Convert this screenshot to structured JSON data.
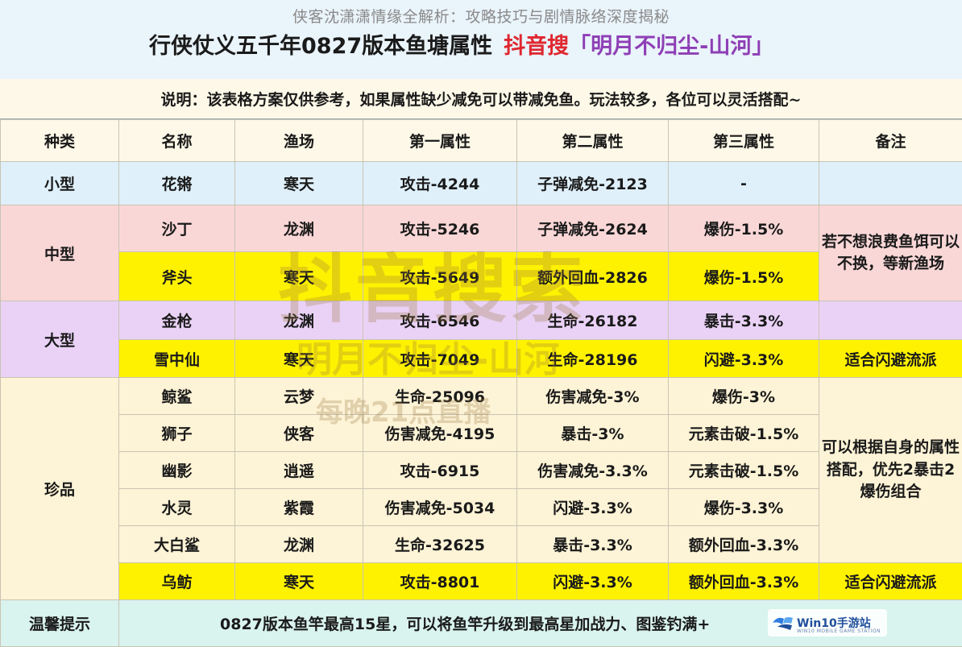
{
  "overlay_title": "侠客沈潇潇情缘全解析：攻略技巧与剧情脉络深度揭秘",
  "title": {
    "main": "行侠仗义五千年0827版本鱼塘属性",
    "brand": "抖音搜",
    "quote": "「明月不归尘-山河」"
  },
  "note": "说明：该表格方案仅供参考，如果属性缺少减免可以带减免鱼。玩法较多，各位可以灵活搭配~",
  "columns": [
    "种类",
    "名称",
    "渔场",
    "第一属性",
    "第二属性",
    "第三属性",
    "备注"
  ],
  "groups": {
    "small": "小型",
    "medium": "中型",
    "large": "大型",
    "rare": "珍品"
  },
  "rows": [
    {
      "name": "花锵",
      "place": "寒天",
      "a1": "攻击-4244",
      "a2": "子弹减免-2123",
      "a3": "-"
    },
    {
      "name": "沙丁",
      "place": "龙渊",
      "a1": "攻击-5246",
      "a2": "子弹减免-2624",
      "a3": "爆伤-1.5%"
    },
    {
      "name": "斧头",
      "place": "寒天",
      "a1": "攻击-5649",
      "a2": "额外回血-2826",
      "a3": "爆伤-1.5%"
    },
    {
      "name": "金枪",
      "place": "龙渊",
      "a1": "攻击-6546",
      "a2": "生命-26182",
      "a3": "暴击-3.3%"
    },
    {
      "name": "雪中仙",
      "place": "寒天",
      "a1": "攻击-7049",
      "a2": "生命-28196",
      "a3": "闪避-3.3%",
      "note": "适合闪避流派"
    },
    {
      "name": "鲸鲨",
      "place": "云梦",
      "a1": "生命-25096",
      "a2": "伤害减免-3%",
      "a3": "爆伤-3%"
    },
    {
      "name": "狮子",
      "place": "侠客",
      "a1": "伤害减免-4195",
      "a2": "暴击-3%",
      "a3": "元素击破-1.5%"
    },
    {
      "name": "幽影",
      "place": "逍遥",
      "a1": "攻击-6915",
      "a2": "伤害减免-3.3%",
      "a3": "元素击破-1.5%"
    },
    {
      "name": "水灵",
      "place": "紫霞",
      "a1": "伤害减免-5034",
      "a2": "闪避-3.3%",
      "a3": "爆伤-3.3%"
    },
    {
      "name": "大白鲨",
      "place": "龙渊",
      "a1": "生命-32625",
      "a2": "暴击-3.3%",
      "a3": "额外回血-3.3%"
    },
    {
      "name": "乌鲂",
      "place": "寒天",
      "a1": "攻击-8801",
      "a2": "闪避-3.3%",
      "a3": "额外回血-3.3%",
      "note": "适合闪避流派"
    }
  ],
  "remarks": {
    "medium": "若不想浪费鱼饵可以不换，等新渔场",
    "rare": "可以根据自身的属性搭配，优先2暴击2爆伤组合"
  },
  "footer": {
    "label": "温馨提示",
    "text": "0827版本鱼竿最高15星，可以将鱼竿升级到最高星加战力、图鉴钓满+"
  },
  "watermark": {
    "line1": "抖音搜索",
    "line2": "明月不归尘-山河",
    "line3": "每晚21点直播"
  },
  "logo": {
    "text": "Win10手游站",
    "sub": "WIN10 MOBILE GAME STATION"
  },
  "colors": {
    "header_bg": "#eaf4fb",
    "note_bg": "#fdf8e7",
    "small_bg": "#dff0fb",
    "medium_bg": "#fad7d7",
    "large_bg": "#ead2f6",
    "rare_bg": "#fdf3d6",
    "highlight_bg": "#fff200",
    "footer_bg": "#d9f3ee",
    "brand_red": "#e0262e",
    "quote_purple": "#8e3fb5"
  }
}
